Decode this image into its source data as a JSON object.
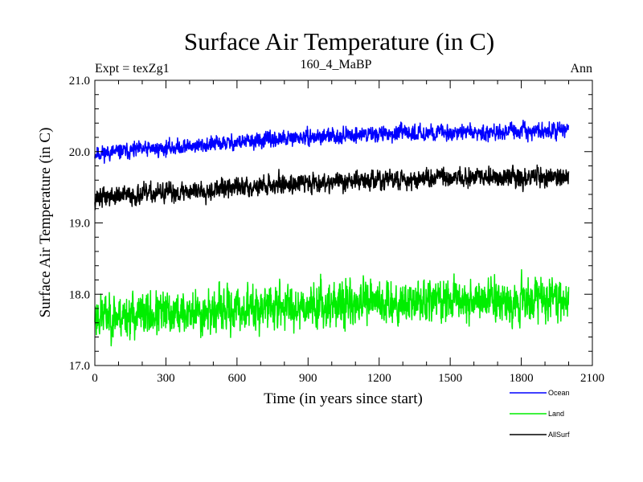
{
  "chart_data": {
    "type": "line",
    "title": "Surface Air Temperature (in C)",
    "subtitle_left": "Expt = texZg1",
    "subtitle_center": "160_4_MaBP",
    "subtitle_right": "Ann",
    "xlabel": "Time (in years since start)",
    "ylabel": "Surface Air Temperature (in C)",
    "xlim": [
      0,
      2100
    ],
    "ylim": [
      17.0,
      21.0
    ],
    "xticks": [
      0,
      300,
      600,
      900,
      1200,
      1500,
      1800,
      2100
    ],
    "xtick_labels": [
      "0",
      "300",
      "600",
      "900",
      "1200",
      "1500",
      "1800",
      "2100"
    ],
    "yticks": [
      17.0,
      18.0,
      19.0,
      20.0,
      21.0
    ],
    "ytick_labels": [
      "17.0",
      "18.0",
      "19.0",
      "20.0",
      "21.0"
    ],
    "n_years": 2000,
    "legend_position": "bottom-right",
    "series": [
      {
        "name": "Ocean",
        "color": "#0000ff",
        "trend_x": [
          0,
          300,
          600,
          900,
          1200,
          1500,
          1800,
          2000
        ],
        "trend_y": [
          19.97,
          20.05,
          20.13,
          20.2,
          20.25,
          20.27,
          20.28,
          20.3
        ],
        "noise_amplitude": 0.07,
        "seed": 11
      },
      {
        "name": "Land",
        "color": "#00ee00",
        "trend_x": [
          0,
          300,
          600,
          900,
          1200,
          1500,
          1800,
          2000
        ],
        "trend_y": [
          17.7,
          17.72,
          17.78,
          17.85,
          17.88,
          17.92,
          17.93,
          17.95
        ],
        "noise_amplitude": 0.2,
        "seed": 23
      },
      {
        "name": "AllSurf",
        "color": "#000000",
        "trend_x": [
          0,
          300,
          600,
          900,
          1200,
          1500,
          1800,
          2000
        ],
        "trend_y": [
          19.35,
          19.42,
          19.5,
          19.57,
          19.6,
          19.63,
          19.64,
          19.65
        ],
        "noise_amplitude": 0.09,
        "seed": 37
      }
    ]
  }
}
